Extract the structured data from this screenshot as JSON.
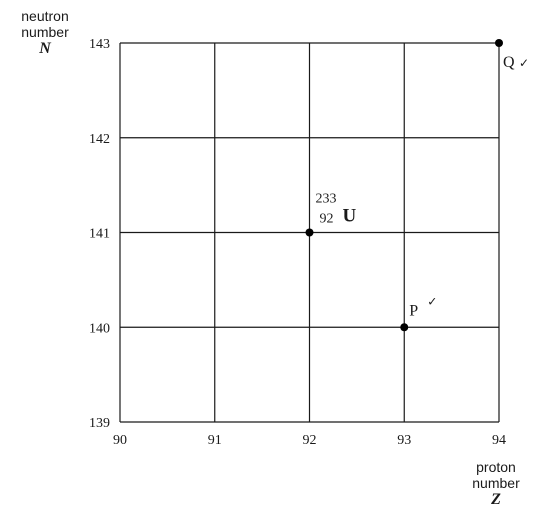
{
  "chart_data": {
    "type": "scatter",
    "x": [
      92,
      93,
      94
    ],
    "y": [
      141,
      140,
      143
    ],
    "point_labels": [
      "U",
      "P",
      "Q"
    ],
    "nuclide": {
      "mass_number": "233",
      "atomic_number": "92",
      "symbol": "U"
    },
    "xlabel_lines": [
      "proton",
      "number"
    ],
    "xlabel_symbol": "Z",
    "ylabel_lines": [
      "neutron",
      "number"
    ],
    "ylabel_symbol": "N",
    "xlim": [
      90,
      94
    ],
    "ylim": [
      139,
      143
    ],
    "x_ticks": [
      "90",
      "91",
      "92",
      "93",
      "94"
    ],
    "y_ticks": [
      "139",
      "140",
      "141",
      "142",
      "143"
    ],
    "grid": true,
    "tick_marks": [
      "✓",
      "✓"
    ],
    "colors": {
      "line": "#1a1a1a",
      "point": "#000000",
      "background": "#ffffff"
    }
  }
}
